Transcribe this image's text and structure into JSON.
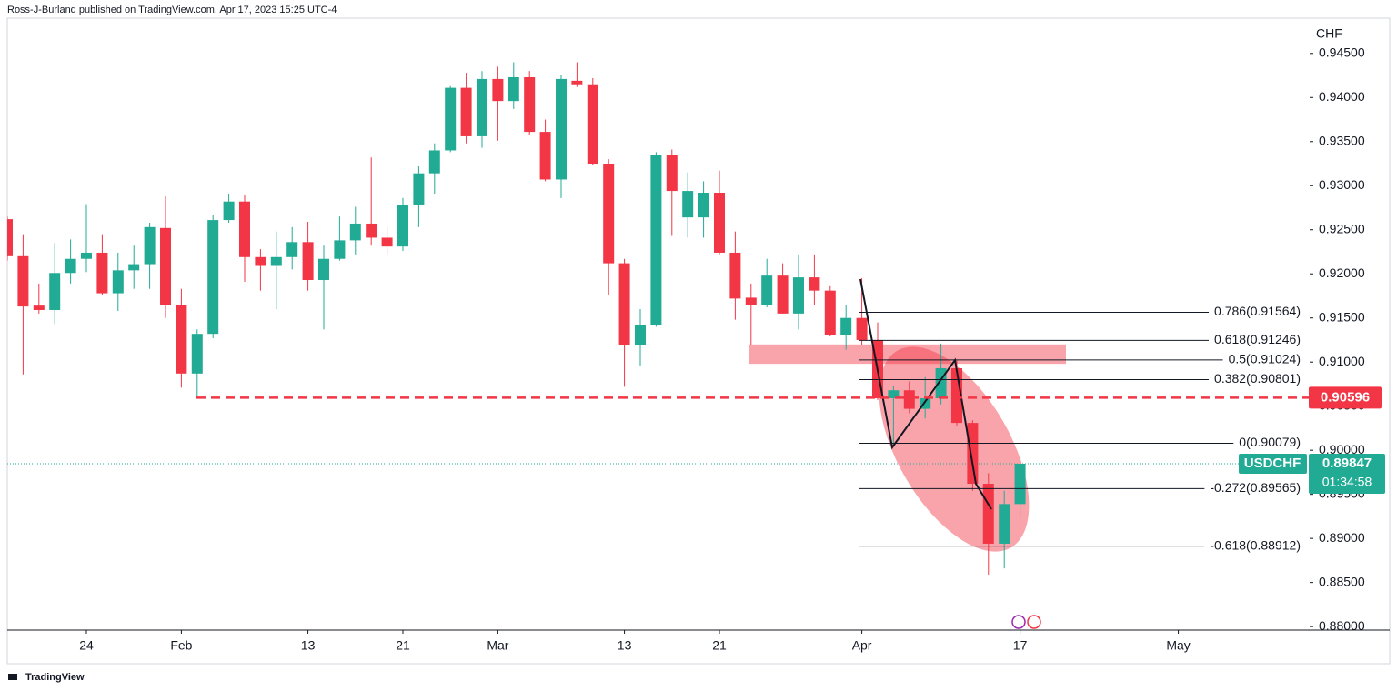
{
  "attribution": "Ross-J-Burland published on TradingView.com, Apr 17, 2023 15:25 UTC-4",
  "footer": "TradingView",
  "chart_data": {
    "type": "candlestick",
    "symbol": "USDCHF",
    "countdown": "01:34:58",
    "y_axis_label": "CHF",
    "up_color": "#22ab94",
    "down_color": "#f23645",
    "grid": false,
    "x": [
      0,
      1,
      2,
      3,
      4,
      5,
      6,
      7,
      8,
      9,
      10,
      11,
      12,
      13,
      14,
      15,
      16,
      17,
      18,
      19,
      20,
      21,
      22,
      23,
      24,
      25,
      26,
      27,
      28,
      29,
      30,
      31,
      32,
      33,
      34,
      35,
      36,
      37,
      38,
      39,
      40,
      41,
      42,
      43,
      44,
      45,
      46,
      47,
      48,
      49,
      50,
      51,
      52,
      53,
      54,
      55,
      56,
      57,
      58,
      59,
      60,
      61,
      62,
      63,
      64
    ],
    "open": [
      0.9262,
      0.922,
      0.9164,
      0.9159,
      0.9201,
      0.9217,
      0.9224,
      0.9178,
      0.9204,
      0.9211,
      0.9252,
      0.9165,
      0.9087,
      0.9132,
      0.9261,
      0.9282,
      0.9219,
      0.9209,
      0.9219,
      0.9236,
      0.9193,
      0.9217,
      0.9238,
      0.9257,
      0.9241,
      0.9231,
      0.9278,
      0.9314,
      0.934,
      0.9411,
      0.9356,
      0.9421,
      0.9396,
      0.9423,
      0.9361,
      0.9307,
      0.9419,
      0.9415,
      0.9325,
      0.9212,
      0.9119,
      0.9142,
      0.9335,
      0.9264,
      0.9264,
      0.9292,
      0.9224,
      0.9173,
      0.9165,
      0.9198,
      0.9155,
      0.9196,
      0.9181,
      0.9131,
      0.915,
      0.9125,
      0.9059,
      0.9068,
      0.9047,
      0.9059,
      0.9093,
      0.9031,
      0.8962,
      0.8894,
      0.8939
    ],
    "high": [
      0.9265,
      0.9245,
      0.9189,
      0.9235,
      0.9239,
      0.9279,
      0.9245,
      0.9224,
      0.9232,
      0.9258,
      0.9288,
      0.9183,
      0.9137,
      0.9267,
      0.9291,
      0.929,
      0.9228,
      0.9248,
      0.9253,
      0.9259,
      0.9232,
      0.9265,
      0.9276,
      0.9332,
      0.9253,
      0.9286,
      0.9322,
      0.9348,
      0.9413,
      0.9428,
      0.943,
      0.9435,
      0.944,
      0.943,
      0.9375,
      0.9426,
      0.944,
      0.9422,
      0.933,
      0.9217,
      0.916,
      0.9338,
      0.9341,
      0.9315,
      0.9305,
      0.9317,
      0.9248,
      0.9189,
      0.9217,
      0.9212,
      0.9222,
      0.9222,
      0.9186,
      0.9165,
      0.9195,
      0.9145,
      0.9073,
      0.9078,
      0.9083,
      0.9121,
      0.9102,
      0.9034,
      0.8974,
      0.8954,
      0.8995
    ],
    "low": [
      0.9215,
      0.9086,
      0.9155,
      0.9143,
      0.9189,
      0.9202,
      0.9176,
      0.9158,
      0.9183,
      0.9183,
      0.915,
      0.9071,
      0.90596,
      0.9127,
      0.9258,
      0.9191,
      0.9181,
      0.916,
      0.9205,
      0.9181,
      0.9137,
      0.9215,
      0.9222,
      0.9232,
      0.9222,
      0.9226,
      0.9253,
      0.9291,
      0.9338,
      0.9348,
      0.9343,
      0.9351,
      0.9387,
      0.9358,
      0.9305,
      0.9286,
      0.9412,
      0.9323,
      0.9176,
      0.9072,
      0.9095,
      0.914,
      0.9243,
      0.9241,
      0.9241,
      0.9222,
      0.9148,
      0.9119,
      0.9162,
      0.9155,
      0.9137,
      0.9165,
      0.9129,
      0.9114,
      0.9119,
      0.9057,
      0.90079,
      0.9042,
      0.9036,
      0.9052,
      0.9028,
      0.8954,
      0.8859,
      0.8866,
      0.8923
    ],
    "close": [
      0.922,
      0.9163,
      0.9159,
      0.9201,
      0.9217,
      0.9224,
      0.9178,
      0.9204,
      0.9211,
      0.9253,
      0.9165,
      0.9087,
      0.9132,
      0.9261,
      0.9282,
      0.9219,
      0.9209,
      0.9219,
      0.9236,
      0.9193,
      0.9217,
      0.9238,
      0.9257,
      0.9241,
      0.9231,
      0.9278,
      0.9314,
      0.934,
      0.9411,
      0.9356,
      0.9421,
      0.9396,
      0.9423,
      0.9361,
      0.9307,
      0.9421,
      0.9415,
      0.9325,
      0.9212,
      0.9119,
      0.9142,
      0.9335,
      0.9294,
      0.9294,
      0.9292,
      0.9224,
      0.9172,
      0.9165,
      0.9198,
      0.9155,
      0.9196,
      0.9181,
      0.9131,
      0.915,
      0.9125,
      0.9059,
      0.9068,
      0.9047,
      0.9059,
      0.9093,
      0.9031,
      0.8962,
      0.8894,
      0.8939,
      0.89847
    ],
    "xlim": [
      0,
      82.3
    ],
    "xticks": [
      {
        "value": 5,
        "label": "24"
      },
      {
        "value": 11,
        "label": "Feb"
      },
      {
        "value": 19,
        "label": "13"
      },
      {
        "value": 25,
        "label": "21"
      },
      {
        "value": 31,
        "label": "Mar"
      },
      {
        "value": 39,
        "label": "13"
      },
      {
        "value": 45,
        "label": "21"
      },
      {
        "value": 54,
        "label": "Apr"
      },
      {
        "value": 64,
        "label": "17"
      },
      {
        "value": 74,
        "label": "May"
      }
    ],
    "ylim": [
      0.8796,
      0.949
    ],
    "yticks": [
      {
        "value": 0.945,
        "label": "0.94500"
      },
      {
        "value": 0.94,
        "label": "0.94000"
      },
      {
        "value": 0.935,
        "label": "0.93500"
      },
      {
        "value": 0.93,
        "label": "0.93000"
      },
      {
        "value": 0.925,
        "label": "0.92500"
      },
      {
        "value": 0.92,
        "label": "0.92000"
      },
      {
        "value": 0.915,
        "label": "0.91500"
      },
      {
        "value": 0.91,
        "label": "0.91000"
      },
      {
        "value": 0.905,
        "label": "0.90500"
      },
      {
        "value": 0.9,
        "label": "0.90000"
      },
      {
        "value": 0.895,
        "label": "0.89500"
      },
      {
        "value": 0.89,
        "label": "0.89000"
      },
      {
        "value": 0.885,
        "label": "0.88500"
      },
      {
        "value": 0.88,
        "label": "0.88000"
      }
    ],
    "horizontal_line": {
      "value": 0.90596
    },
    "zone": {
      "low": 0.9098,
      "high": 0.912
    },
    "fib_levels": [
      {
        "value": 0.91564,
        "label": "0.786(0.91564)"
      },
      {
        "value": 0.91246,
        "label": "0.618(0.91246)"
      },
      {
        "value": 0.91024,
        "label": "0.5(0.91024)"
      },
      {
        "value": 0.90801,
        "label": "0.382(0.90801)"
      },
      {
        "value": 0.90079,
        "label": "0(0.90079)"
      },
      {
        "value": 0.89565,
        "label": "-0.272(0.89565)"
      },
      {
        "value": 0.88912,
        "label": "-0.618(0.88912)"
      }
    ]
  }
}
